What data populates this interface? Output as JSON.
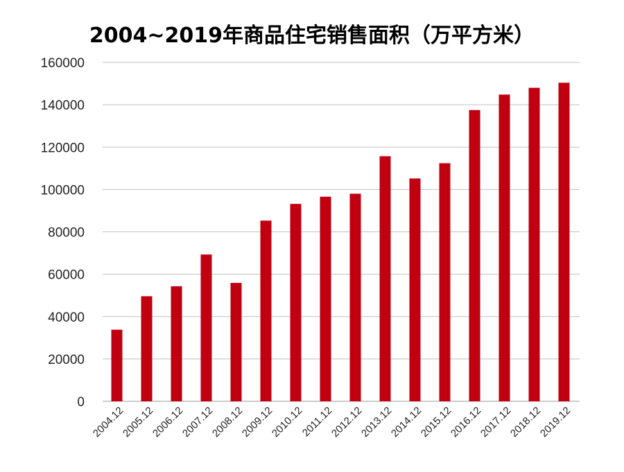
{
  "chart_data": {
    "type": "bar",
    "title": "2004~2019年商品住宅销售面积（万平方米）",
    "categories": [
      "2004.12",
      "2005.12",
      "2006.12",
      "2007.12",
      "2008.12",
      "2009.12",
      "2010.12",
      "2011.12",
      "2012.12",
      "2013.12",
      "2014.12",
      "2015.12",
      "2016.12",
      "2017.12",
      "2018.12",
      "2019.12"
    ],
    "values": [
      33800,
      49600,
      54300,
      69300,
      55900,
      85300,
      93200,
      96600,
      98000,
      115700,
      105200,
      112400,
      137500,
      144800,
      148000,
      150400
    ],
    "ylim": [
      0,
      160000
    ],
    "yticks": [
      0,
      20000,
      40000,
      60000,
      80000,
      100000,
      120000,
      140000,
      160000
    ],
    "grid": true,
    "bar_color": "#c00010",
    "grid_color": "#bfbfbf"
  }
}
